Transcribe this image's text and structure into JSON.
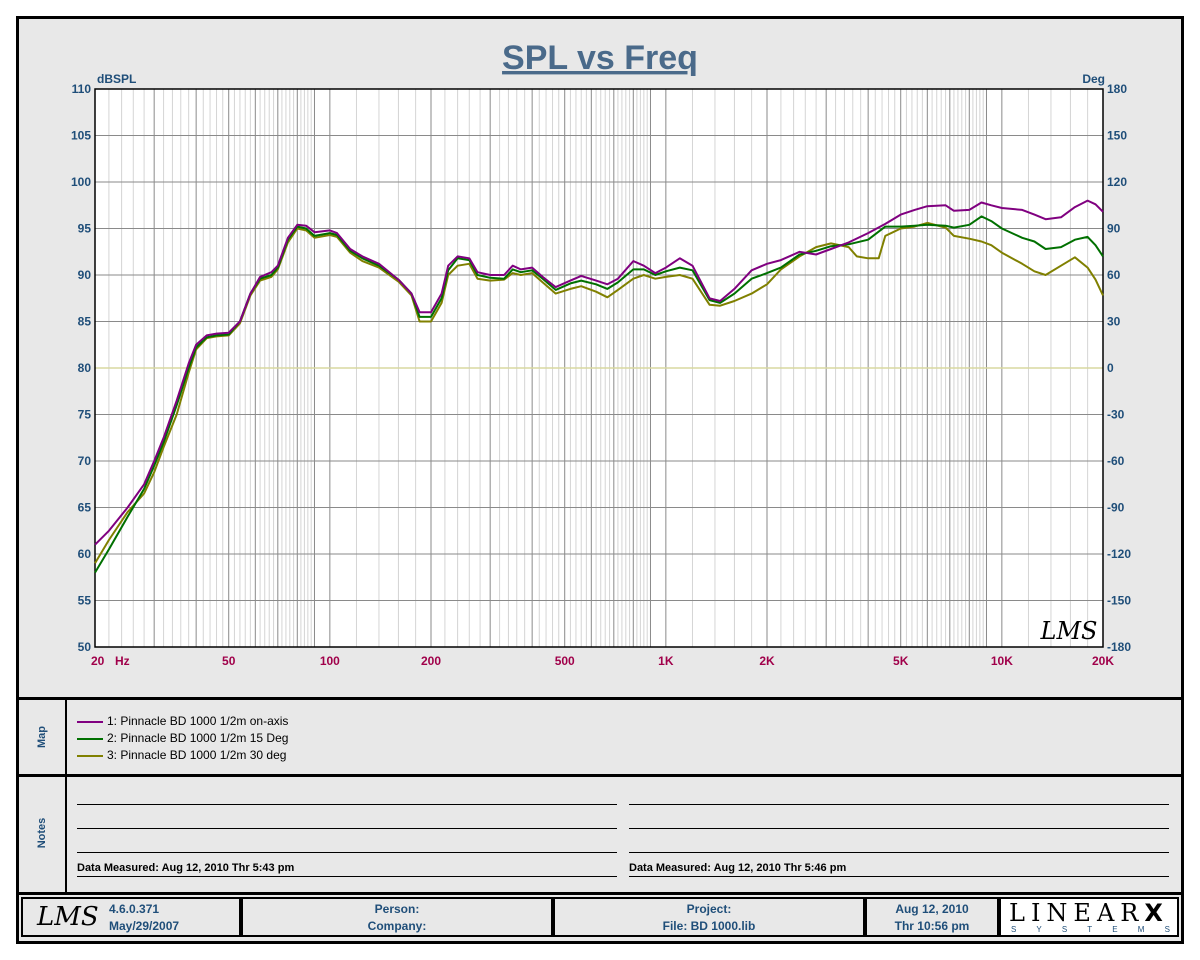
{
  "chart_data": {
    "type": "line",
    "title": "SPL vs Freq",
    "ylabel_left": "dBSPL",
    "ylabel_right": "Deg",
    "xscale": "log",
    "xlim": [
      20,
      20000
    ],
    "ylim": [
      50,
      110
    ],
    "ylim_right": [
      -180,
      180
    ],
    "grid": true,
    "y_ticks": [
      "110",
      "105",
      "100",
      "95",
      "90",
      "85",
      "80",
      "75",
      "70",
      "65",
      "60",
      "55",
      "50"
    ],
    "y2_ticks": [
      "180",
      "150",
      "120",
      "90",
      "60",
      "30",
      "0",
      "-30",
      "-60",
      "-90",
      "-120",
      "-150",
      "-180"
    ],
    "x_tick_labels": [
      {
        "v": 20,
        "label": "20"
      },
      {
        "v": 50,
        "label": "50"
      },
      {
        "v": 100,
        "label": "100"
      },
      {
        "v": 200,
        "label": "200"
      },
      {
        "v": 500,
        "label": "500"
      },
      {
        "v": 1000,
        "label": "1K"
      },
      {
        "v": 2000,
        "label": "2K"
      },
      {
        "v": 5000,
        "label": "5K"
      },
      {
        "v": 10000,
        "label": "10K"
      },
      {
        "v": 20000,
        "label": "20K"
      }
    ],
    "x_unit": "Hz",
    "series": [
      {
        "name": "1: Pinnacle BD 1000 1/2m on-axis",
        "color": "#800080",
        "points": [
          [
            20,
            61
          ],
          [
            22,
            62.5
          ],
          [
            25,
            65
          ],
          [
            28,
            67.5
          ],
          [
            30,
            70
          ],
          [
            32,
            72.5
          ],
          [
            35,
            76.5
          ],
          [
            38,
            80.5
          ],
          [
            40,
            82.5
          ],
          [
            43,
            83.5
          ],
          [
            46,
            83.7
          ],
          [
            50,
            83.8
          ],
          [
            54,
            85
          ],
          [
            58,
            88
          ],
          [
            62,
            89.8
          ],
          [
            67,
            90.3
          ],
          [
            70,
            91
          ],
          [
            75,
            94
          ],
          [
            80,
            95.4
          ],
          [
            85,
            95.3
          ],
          [
            90,
            94.6
          ],
          [
            100,
            94.8
          ],
          [
            105,
            94.5
          ],
          [
            115,
            92.8
          ],
          [
            125,
            92
          ],
          [
            140,
            91.2
          ],
          [
            160,
            89.5
          ],
          [
            175,
            88
          ],
          [
            185,
            86
          ],
          [
            200,
            86
          ],
          [
            215,
            88
          ],
          [
            225,
            91
          ],
          [
            240,
            92
          ],
          [
            260,
            91.8
          ],
          [
            275,
            90.3
          ],
          [
            300,
            90
          ],
          [
            330,
            90
          ],
          [
            350,
            91
          ],
          [
            370,
            90.6
          ],
          [
            400,
            90.8
          ],
          [
            430,
            89.8
          ],
          [
            470,
            88.7
          ],
          [
            520,
            89.4
          ],
          [
            560,
            89.9
          ],
          [
            620,
            89.4
          ],
          [
            670,
            89
          ],
          [
            720,
            89.6
          ],
          [
            800,
            91.5
          ],
          [
            860,
            91
          ],
          [
            930,
            90.2
          ],
          [
            1000,
            90.8
          ],
          [
            1100,
            91.8
          ],
          [
            1200,
            91
          ],
          [
            1350,
            87.5
          ],
          [
            1450,
            87.2
          ],
          [
            1600,
            88.5
          ],
          [
            1800,
            90.5
          ],
          [
            2000,
            91.2
          ],
          [
            2200,
            91.6
          ],
          [
            2500,
            92.5
          ],
          [
            2800,
            92.2
          ],
          [
            3100,
            92.8
          ],
          [
            3500,
            93.5
          ],
          [
            4000,
            94.5
          ],
          [
            4500,
            95.5
          ],
          [
            5000,
            96.5
          ],
          [
            5500,
            97
          ],
          [
            6000,
            97.4
          ],
          [
            6800,
            97.5
          ],
          [
            7200,
            96.9
          ],
          [
            8000,
            97
          ],
          [
            8700,
            97.8
          ],
          [
            9300,
            97.5
          ],
          [
            10000,
            97.2
          ],
          [
            11500,
            97
          ],
          [
            12500,
            96.5
          ],
          [
            13500,
            96
          ],
          [
            15000,
            96.2
          ],
          [
            16500,
            97.3
          ],
          [
            18000,
            98
          ],
          [
            19000,
            97.6
          ],
          [
            20000,
            96.8
          ]
        ]
      },
      {
        "name": "2: Pinnacle BD 1000 1/2m 15 Deg",
        "color": "#007000",
        "points": [
          [
            20,
            58
          ],
          [
            22,
            60.5
          ],
          [
            25,
            64
          ],
          [
            28,
            67
          ],
          [
            30,
            69.5
          ],
          [
            32,
            72
          ],
          [
            35,
            76
          ],
          [
            38,
            80
          ],
          [
            40,
            82.2
          ],
          [
            43,
            83.3
          ],
          [
            46,
            83.5
          ],
          [
            50,
            83.6
          ],
          [
            54,
            85
          ],
          [
            58,
            88
          ],
          [
            62,
            89.6
          ],
          [
            67,
            90
          ],
          [
            70,
            90.8
          ],
          [
            75,
            93.8
          ],
          [
            80,
            95.2
          ],
          [
            85,
            95
          ],
          [
            90,
            94.2
          ],
          [
            100,
            94.5
          ],
          [
            105,
            94.3
          ],
          [
            115,
            92.6
          ],
          [
            125,
            91.8
          ],
          [
            140,
            91
          ],
          [
            160,
            89.5
          ],
          [
            175,
            88
          ],
          [
            185,
            85.5
          ],
          [
            200,
            85.5
          ],
          [
            215,
            87.5
          ],
          [
            225,
            90.5
          ],
          [
            240,
            91.8
          ],
          [
            260,
            91.6
          ],
          [
            275,
            90
          ],
          [
            300,
            89.7
          ],
          [
            330,
            89.6
          ],
          [
            350,
            90.6
          ],
          [
            370,
            90.3
          ],
          [
            400,
            90.5
          ],
          [
            430,
            89.6
          ],
          [
            470,
            88.4
          ],
          [
            520,
            89.1
          ],
          [
            560,
            89.4
          ],
          [
            620,
            89
          ],
          [
            670,
            88.5
          ],
          [
            720,
            89.2
          ],
          [
            800,
            90.6
          ],
          [
            860,
            90.6
          ],
          [
            930,
            90
          ],
          [
            1000,
            90.4
          ],
          [
            1100,
            90.8
          ],
          [
            1200,
            90.5
          ],
          [
            1350,
            87.3
          ],
          [
            1450,
            87.0
          ],
          [
            1600,
            88
          ],
          [
            1800,
            89.6
          ],
          [
            2000,
            90.2
          ],
          [
            2200,
            90.8
          ],
          [
            2500,
            92.2
          ],
          [
            2800,
            92.6
          ],
          [
            3100,
            93.1
          ],
          [
            3500,
            93.3
          ],
          [
            4000,
            93.8
          ],
          [
            4500,
            95.2
          ],
          [
            5000,
            95.2
          ],
          [
            5500,
            95.3
          ],
          [
            6000,
            95.4
          ],
          [
            6800,
            95.3
          ],
          [
            7200,
            95.1
          ],
          [
            8000,
            95.4
          ],
          [
            8700,
            96.3
          ],
          [
            9300,
            95.8
          ],
          [
            10000,
            95
          ],
          [
            11500,
            94
          ],
          [
            12500,
            93.6
          ],
          [
            13500,
            92.8
          ],
          [
            15000,
            93
          ],
          [
            16500,
            93.8
          ],
          [
            18000,
            94.1
          ],
          [
            19000,
            93.2
          ],
          [
            20000,
            92
          ]
        ]
      },
      {
        "name": "3: Pinnacle BD 1000 1/2m  30 deg",
        "color": "#808000",
        "points": [
          [
            20,
            59
          ],
          [
            22,
            61.5
          ],
          [
            25,
            64.5
          ],
          [
            28,
            66.5
          ],
          [
            30,
            68.8
          ],
          [
            32,
            71.5
          ],
          [
            35,
            75
          ],
          [
            38,
            79.5
          ],
          [
            40,
            82
          ],
          [
            43,
            83.2
          ],
          [
            46,
            83.4
          ],
          [
            50,
            83.5
          ],
          [
            54,
            84.8
          ],
          [
            58,
            87.8
          ],
          [
            62,
            89.4
          ],
          [
            67,
            89.8
          ],
          [
            70,
            90.6
          ],
          [
            75,
            93.5
          ],
          [
            80,
            95
          ],
          [
            85,
            94.8
          ],
          [
            90,
            94
          ],
          [
            100,
            94.3
          ],
          [
            105,
            94.1
          ],
          [
            115,
            92.4
          ],
          [
            125,
            91.5
          ],
          [
            140,
            90.8
          ],
          [
            160,
            89.3
          ],
          [
            175,
            87.8
          ],
          [
            185,
            85
          ],
          [
            200,
            85
          ],
          [
            215,
            87
          ],
          [
            225,
            90
          ],
          [
            240,
            91
          ],
          [
            260,
            91.2
          ],
          [
            275,
            89.6
          ],
          [
            300,
            89.4
          ],
          [
            330,
            89.5
          ],
          [
            350,
            90.2
          ],
          [
            370,
            90
          ],
          [
            400,
            90.2
          ],
          [
            430,
            89.2
          ],
          [
            470,
            88
          ],
          [
            520,
            88.5
          ],
          [
            560,
            88.8
          ],
          [
            620,
            88.2
          ],
          [
            670,
            87.6
          ],
          [
            720,
            88.4
          ],
          [
            800,
            89.6
          ],
          [
            860,
            90
          ],
          [
            930,
            89.6
          ],
          [
            1000,
            89.8
          ],
          [
            1100,
            90
          ],
          [
            1200,
            89.6
          ],
          [
            1350,
            86.8
          ],
          [
            1450,
            86.7
          ],
          [
            1600,
            87.2
          ],
          [
            1800,
            88
          ],
          [
            2000,
            89
          ],
          [
            2200,
            90.6
          ],
          [
            2500,
            92
          ],
          [
            2800,
            93
          ],
          [
            3100,
            93.4
          ],
          [
            3500,
            93
          ],
          [
            3700,
            92
          ],
          [
            4000,
            91.8
          ],
          [
            4300,
            91.8
          ],
          [
            4500,
            94.2
          ],
          [
            5000,
            95
          ],
          [
            5500,
            95.2
          ],
          [
            6000,
            95.6
          ],
          [
            6800,
            95.1
          ],
          [
            7200,
            94.2
          ],
          [
            8000,
            93.9
          ],
          [
            8700,
            93.6
          ],
          [
            9300,
            93.2
          ],
          [
            10000,
            92.4
          ],
          [
            11500,
            91.2
          ],
          [
            12500,
            90.4
          ],
          [
            13500,
            90
          ],
          [
            15000,
            91
          ],
          [
            16500,
            91.9
          ],
          [
            18000,
            90.8
          ],
          [
            19000,
            89.5
          ],
          [
            20000,
            87.8
          ]
        ]
      }
    ],
    "reference_line": {
      "y": 80,
      "color": "#d8d8a0"
    }
  },
  "watermark_logo": "LMS",
  "map": {
    "label": "Map",
    "entries": [
      {
        "text": "1: Pinnacle BD 1000 1/2m on-axis",
        "color": "#800080"
      },
      {
        "text": "2: Pinnacle BD 1000 1/2m 15 Deg",
        "color": "#007000"
      },
      {
        "text": "3: Pinnacle BD 1000 1/2m  30 deg",
        "color": "#808000"
      }
    ]
  },
  "notes": {
    "label": "Notes",
    "left_measured": "Data Measured: Aug 12, 2010  Thr  5:43 pm",
    "right_measured": "Data Measured: Aug 12, 2010  Thr  5:46 pm"
  },
  "footer": {
    "logo": "LMS",
    "version": "4.6.0.371",
    "version_date": "May/29/2007",
    "person": "Person:",
    "company": "Company:",
    "project": "Project:",
    "file": "File: BD 1000.lib",
    "date": "Aug 12, 2010",
    "time": "Thr 10:56 pm",
    "brand": "LINEAR",
    "brand_x": "X",
    "brand_sub": "S Y S T E M S"
  }
}
